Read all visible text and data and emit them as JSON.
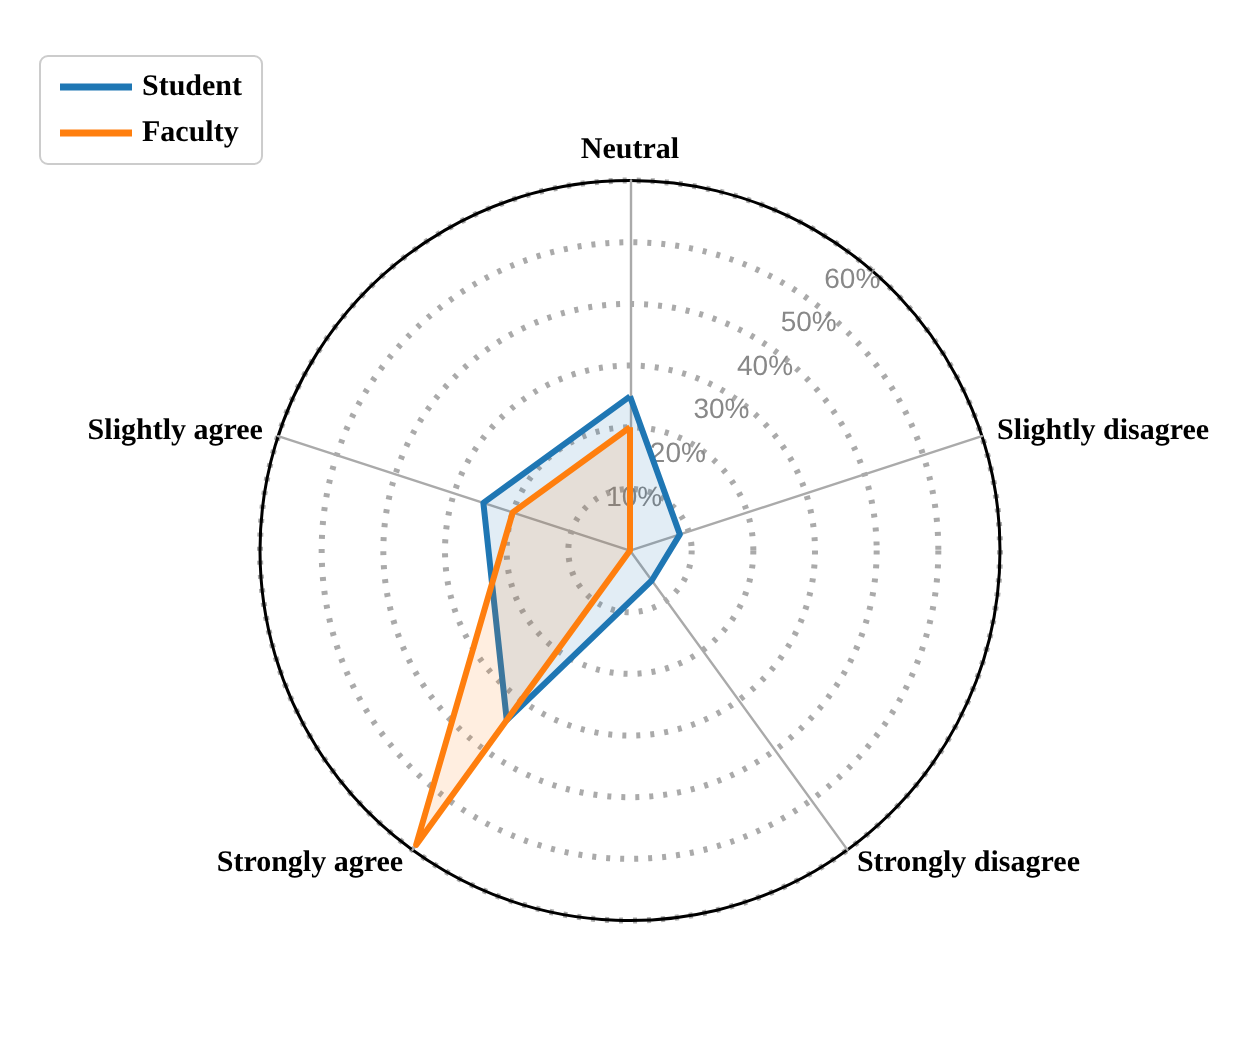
{
  "chart_data": {
    "type": "radar",
    "categories": [
      "Neutral",
      "Slightly disagree",
      "Strongly disagree",
      "Strongly agree",
      "Slightly agree"
    ],
    "series": [
      {
        "name": "Student",
        "color": "#1f77b4",
        "values": [
          25,
          8.5,
          6,
          34,
          25
        ]
      },
      {
        "name": "Faculty",
        "color": "#ff7f0e",
        "values": [
          20,
          0,
          0,
          59,
          20
        ]
      }
    ],
    "ylim": [
      0,
      60
    ],
    "yticks": [
      {
        "value": 10,
        "label": "10%"
      },
      {
        "value": 20,
        "label": "20%"
      },
      {
        "value": 30,
        "label": "30%"
      },
      {
        "value": 40,
        "label": "40%"
      },
      {
        "value": 50,
        "label": "50%"
      },
      {
        "value": 60,
        "label": "60%"
      }
    ],
    "grid": true,
    "legend": "top left",
    "marker": "none",
    "line_style": "solid"
  }
}
